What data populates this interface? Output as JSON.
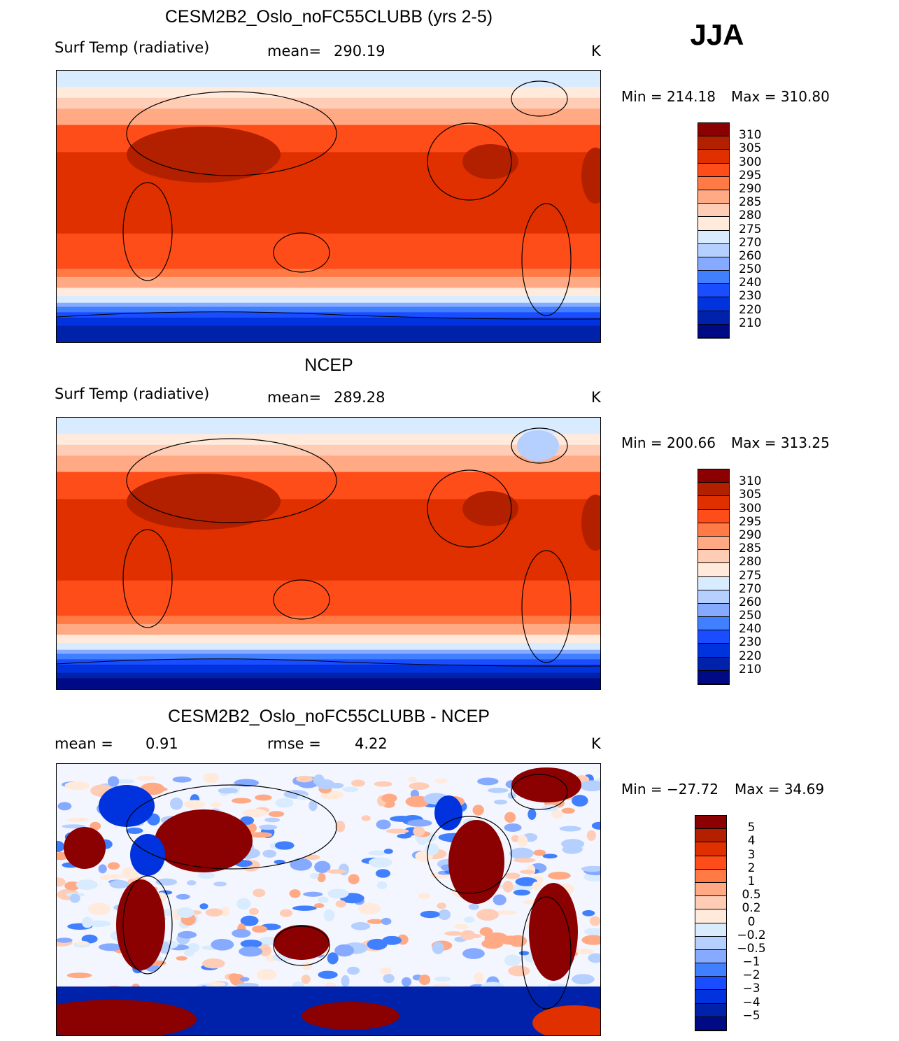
{
  "season": "JJA",
  "colors": [
    "#8b0000",
    "#b22000",
    "#e03000",
    "#ff4d1a",
    "#ff7a45",
    "#ffaa85",
    "#ffcdb5",
    "#ffeadb",
    "#d8ebff",
    "#b5cfff",
    "#85aaff",
    "#4080ff",
    "#1a4dff",
    "#0033dd",
    "#0022aa",
    "#000a85"
  ],
  "chart_data": [
    {
      "type": "heatmap",
      "title": "CESM2B2_Oslo_noFC55CLUBB (yrs 2-5)",
      "variable": "Surf Temp (radiative)",
      "stat_label": "mean=",
      "stat_value": "290.19",
      "units": "K",
      "min_label": "Min  =  214.18",
      "max_label": "Max  =  310.80",
      "levels": [
        "310",
        "305",
        "300",
        "295",
        "290",
        "285",
        "280",
        "275",
        "270",
        "260",
        "250",
        "240",
        "230",
        "220",
        "210"
      ]
    },
    {
      "type": "heatmap",
      "title": "NCEP",
      "variable": "Surf Temp (radiative)",
      "stat_label": "mean=",
      "stat_value": "289.28",
      "units": "K",
      "min_label": "Min  =  200.66",
      "max_label": "Max  =  313.25",
      "levels": [
        "310",
        "305",
        "300",
        "295",
        "290",
        "285",
        "280",
        "275",
        "270",
        "260",
        "250",
        "240",
        "230",
        "220",
        "210"
      ]
    },
    {
      "type": "heatmap",
      "title": "CESM2B2_Oslo_noFC55CLUBB - NCEP",
      "variable": "mean  =",
      "stat_label": "rmse  =",
      "stat_value": "4.22",
      "mean_value": "0.91",
      "units": "K",
      "min_label": "Min  =  −27.72",
      "max_label": "Max  =   34.69",
      "levels": [
        "5",
        "4",
        "3",
        "2",
        "1",
        "0.5",
        "0.2",
        "0",
        "−0.2",
        "−0.5",
        "−1",
        "−2",
        "−3",
        "−4",
        "−5"
      ]
    }
  ]
}
